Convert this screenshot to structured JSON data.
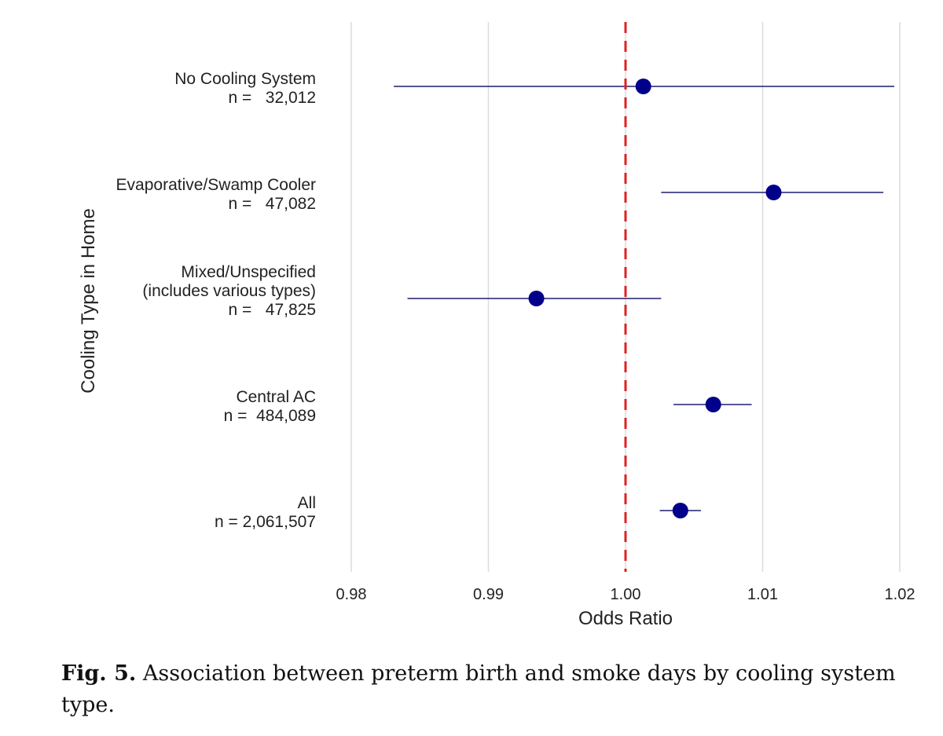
{
  "chart_data": {
    "type": "forest",
    "xlabel": "Odds Ratio",
    "ylabel": "Cooling Type in Home",
    "xlim": [
      0.98,
      1.02
    ],
    "xticks": [
      0.98,
      0.99,
      1.0,
      1.01,
      1.02
    ],
    "xtick_labels": [
      "0.98",
      "0.99",
      "1.00",
      "1.01",
      "1.02"
    ],
    "reference_line": 1.0,
    "reference_line_color": "#dd2222",
    "point_color": "#00008b",
    "rows": [
      {
        "label_lines": [
          "No Cooling System",
          "n =   32,012"
        ],
        "estimate": 1.0013,
        "lower": 0.9831,
        "upper": 1.0196
      },
      {
        "label_lines": [
          "Evaporative/Swamp Cooler",
          "n =   47,082"
        ],
        "estimate": 1.0108,
        "lower": 1.0026,
        "upper": 1.0188
      },
      {
        "label_lines": [
          "Mixed/Unspecified",
          "(includes various types)",
          "n =   47,825"
        ],
        "estimate": 0.9935,
        "lower": 0.9841,
        "upper": 1.0026
      },
      {
        "label_lines": [
          "Central AC",
          "n =  484,089"
        ],
        "estimate": 1.0064,
        "lower": 1.0035,
        "upper": 1.0092
      },
      {
        "label_lines": [
          "All",
          "n = 2,061,507"
        ],
        "estimate": 1.004,
        "lower": 1.0025,
        "upper": 1.0055
      }
    ]
  },
  "caption": {
    "label": "Fig. 5.",
    "text": "Association between preterm birth and smoke days by cooling system type."
  }
}
